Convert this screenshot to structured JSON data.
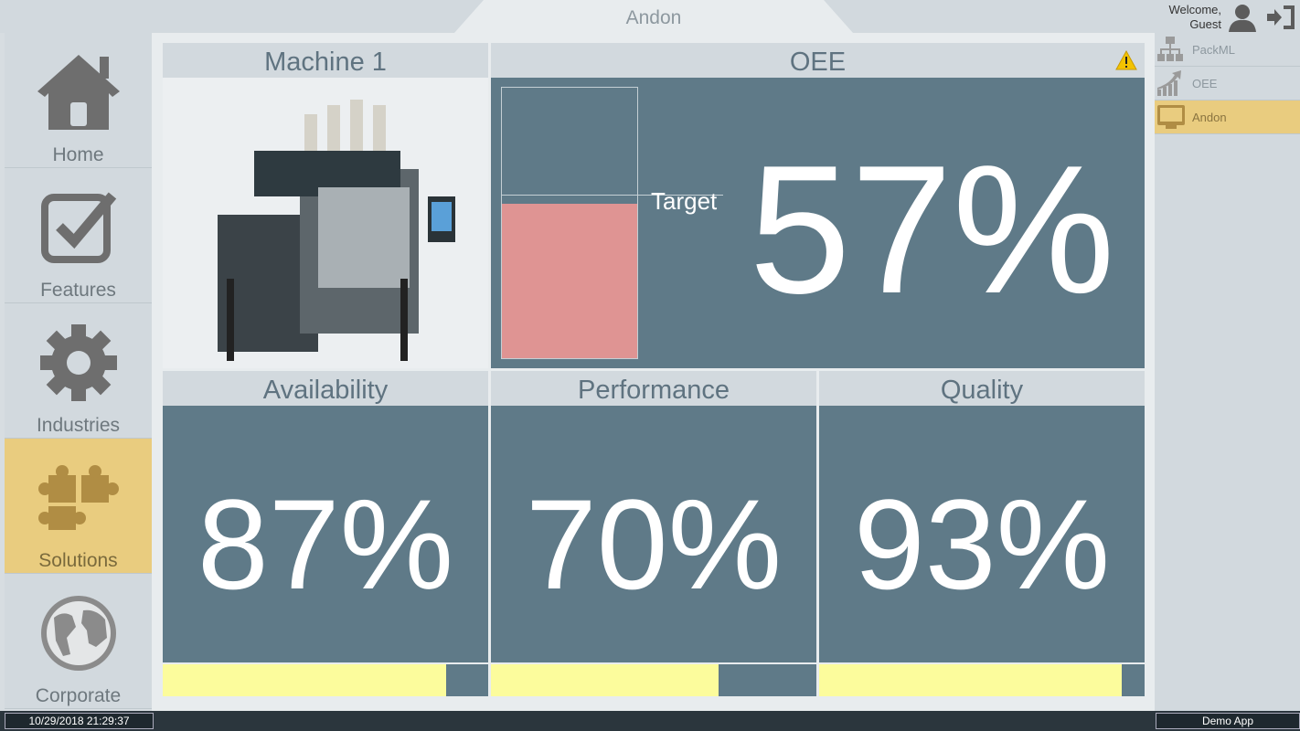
{
  "header": {
    "title": "Andon",
    "welcome": "Welcome,",
    "user": "Guest"
  },
  "sidebar": {
    "items": [
      {
        "label": "Home",
        "icon": "home-icon"
      },
      {
        "label": "Features",
        "icon": "checkbox-icon"
      },
      {
        "label": "Industries",
        "icon": "gear-icon"
      },
      {
        "label": "Solutions",
        "icon": "puzzle-icon",
        "active": true
      },
      {
        "label": "Corporate",
        "icon": "globe-icon"
      }
    ]
  },
  "right_menu": {
    "items": [
      {
        "label": "PackML",
        "icon": "hierarchy-icon"
      },
      {
        "label": "OEE",
        "icon": "growth-chart-icon"
      },
      {
        "label": "Andon",
        "icon": "monitor-icon",
        "active": true
      }
    ]
  },
  "machine": {
    "title": "Machine 1"
  },
  "oee": {
    "title": "OEE",
    "value": "57%",
    "fill_percent": 57,
    "target_percent": 60,
    "target_label": "Target",
    "warning": "warning-icon"
  },
  "metrics": [
    {
      "title": "Availability",
      "value": "87%",
      "fill_percent": 87
    },
    {
      "title": "Performance",
      "value": "70%",
      "fill_percent": 70
    },
    {
      "title": "Quality",
      "value": "93%",
      "fill_percent": 93
    }
  ],
  "status": {
    "datetime": "10/29/2018 21:29:37",
    "app": "Demo App"
  },
  "colors": {
    "tile": "#5f7a88",
    "active": "#e9cc7f",
    "oee_bar": "#df9493",
    "progress": "#fcfc9c"
  }
}
